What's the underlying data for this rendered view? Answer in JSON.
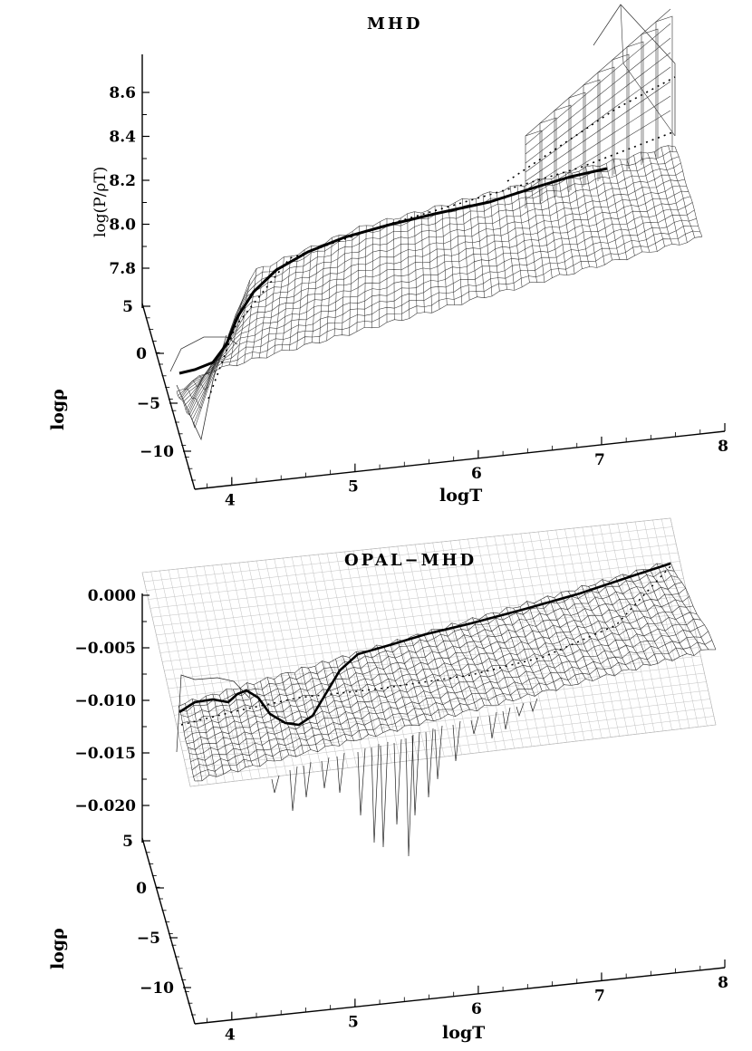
{
  "chart_data": [
    {
      "type": "surface",
      "title": "MHD",
      "zlabel": "log(P/ρT)",
      "ylabel": "logρ",
      "xlabel": "logT",
      "x_ticks": [
        "4",
        "5",
        "6",
        "7",
        "8"
      ],
      "y_ticks": [
        "5",
        "0",
        "−5",
        "−10"
      ],
      "z_ticks": [
        "7.8",
        "8.0",
        "8.2",
        "8.4",
        "8.6"
      ],
      "xlim": [
        3.7,
        8.0
      ],
      "ylim": [
        -12,
        5
      ],
      "zlim": [
        7.7,
        8.7
      ],
      "solid_curve": {
        "logT": [
          3.72,
          3.9,
          4.1,
          4.3,
          4.6,
          5.0,
          5.5,
          6.0,
          6.5,
          6.8
        ],
        "logP_rhoT": [
          7.62,
          7.66,
          7.88,
          8.0,
          8.06,
          8.1,
          8.14,
          8.18,
          8.3,
          8.36
        ]
      }
    },
    {
      "type": "surface",
      "title": "OPAL−MHD",
      "zlabel": "",
      "ylabel": "logρ",
      "xlabel": "logT",
      "x_ticks": [
        "4",
        "5",
        "6",
        "7",
        "8"
      ],
      "y_ticks": [
        "5",
        "0",
        "−5",
        "−10"
      ],
      "z_ticks": [
        "0.000",
        "−0.005",
        "−0.010",
        "−0.015",
        "−0.020"
      ],
      "xlim": [
        3.7,
        8.0
      ],
      "ylim": [
        -12,
        5
      ],
      "zlim": [
        -0.022,
        0.001
      ],
      "solid_curve": {
        "logT": [
          3.72,
          3.85,
          4.0,
          4.15,
          4.35,
          4.5,
          4.8,
          5.2,
          5.6,
          6.0,
          6.6,
          7.2
        ],
        "difference": [
          -0.011,
          -0.0105,
          -0.0095,
          -0.0108,
          -0.0125,
          -0.0115,
          -0.007,
          -0.0055,
          -0.004,
          -0.0025,
          -0.001,
          0.0
        ]
      }
    }
  ]
}
